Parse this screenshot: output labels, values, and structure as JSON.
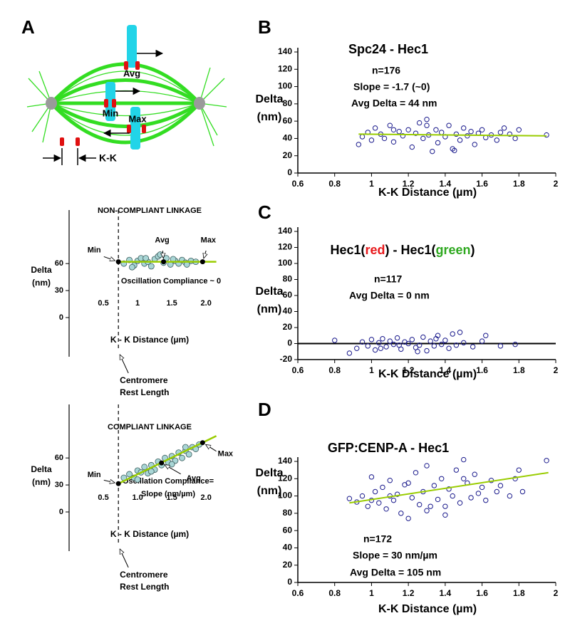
{
  "panel_labels": [
    "A",
    "B",
    "C",
    "D"
  ],
  "diagram": {
    "labels": [
      "Avg",
      "Min",
      "Max",
      "K-K"
    ]
  },
  "chart_data": [
    {
      "type": "scatter",
      "title": "NON-COMPLIANT LINKAGE",
      "xlabel": "K - K Distance (µm)",
      "ylabel": [
        "Delta",
        "(nm)"
      ],
      "xlim": [
        0,
        2.3
      ],
      "ylim": [
        0,
        110
      ],
      "xticks": [
        0.5,
        1,
        1.5,
        {
          "value": 2,
          "label": "2.0"
        }
      ],
      "yticks": [
        0,
        30,
        60
      ],
      "color": "#a9d6d6",
      "x": [
        0.8,
        0.88,
        0.95,
        1.0,
        1.05,
        1.1,
        1.15,
        1.2,
        1.25,
        1.3,
        1.38,
        1.42,
        1.48,
        1.55,
        1.6,
        1.65,
        1.7,
        1.78,
        1.85,
        0.92,
        1.12,
        1.33,
        1.52,
        1.72
      ],
      "y": [
        60,
        64,
        58,
        63,
        66,
        60,
        62,
        57,
        65,
        68,
        61,
        66,
        59,
        63,
        60,
        64,
        61,
        63,
        62,
        56,
        66,
        70,
        65,
        59
      ],
      "fit": {
        "x": [
          0.72,
          2.15
        ],
        "y": [
          62,
          62
        ],
        "color": "#99cc00"
      },
      "key_points": {
        "x": [
          0.72,
          1.38,
          1.95
        ],
        "y": [
          62,
          62,
          62
        ],
        "labels": [
          "Min",
          "Avg",
          "Max"
        ]
      },
      "rest_length": 0.72,
      "rest_label": [
        "Centromere",
        "Rest Length"
      ],
      "annotations": [
        "Oscillation Compliance ~ 0"
      ]
    },
    {
      "type": "scatter",
      "title": "COMPLIANT LINKAGE",
      "xlabel": "K - K Distance (µm)",
      "ylabel": [
        "Delta",
        "(nm)"
      ],
      "xlim": [
        0,
        2.3
      ],
      "ylim": [
        0,
        110
      ],
      "xticks": [
        0.5,
        {
          "value": 1,
          "label": "1.0"
        },
        1.5,
        {
          "value": 2,
          "label": "2.0"
        }
      ],
      "yticks": [
        0,
        30,
        60
      ],
      "color": "#a9d6d6",
      "x": [
        0.8,
        0.88,
        0.95,
        1.0,
        1.05,
        1.1,
        1.15,
        1.2,
        1.25,
        1.3,
        1.35,
        1.4,
        1.45,
        1.5,
        1.55,
        1.6,
        1.65,
        1.7,
        1.75,
        1.8,
        1.85,
        1.9,
        1.0,
        1.2,
        1.5,
        1.7
      ],
      "y": [
        38,
        42,
        38,
        46,
        44,
        50,
        43,
        52,
        47,
        56,
        52,
        60,
        55,
        62,
        57,
        66,
        60,
        68,
        64,
        72,
        70,
        75,
        36,
        45,
        53,
        72
      ],
      "fit": {
        "x": [
          0.72,
          2.15
        ],
        "y": [
          31.5,
          84.5
        ],
        "color": "#99cc00"
      },
      "key_points": {
        "x": [
          0.72,
          1.35,
          1.95
        ],
        "y": [
          31.5,
          54.5,
          77
        ],
        "labels": [
          "Min",
          "Avg",
          "Max"
        ]
      },
      "rest_length": 0.72,
      "rest_label": [
        "Centromere",
        "Rest Length"
      ],
      "annotations": [
        "Oscillation Compliance=",
        "Slope (nm/µm)"
      ]
    },
    {
      "type": "scatter",
      "title": "Spc24 - Hec1",
      "xlabel": "K-K Distance (µm)",
      "ylabel": [
        "Delta",
        "(nm)"
      ],
      "xlim": [
        0.6,
        2
      ],
      "ylim": [
        0,
        140
      ],
      "xticks": [
        0.6,
        0.8,
        1,
        1.2,
        1.4,
        1.6,
        1.8,
        2
      ],
      "yticks": [
        0,
        20,
        40,
        60,
        80,
        100,
        120,
        140
      ],
      "color": "#1a1a8c",
      "x": [
        0.93,
        0.95,
        0.98,
        1.0,
        1.02,
        1.05,
        1.07,
        1.1,
        1.12,
        1.15,
        1.17,
        1.2,
        1.22,
        1.24,
        1.26,
        1.28,
        1.3,
        1.31,
        1.33,
        1.35,
        1.36,
        1.38,
        1.4,
        1.42,
        1.44,
        1.46,
        1.48,
        1.5,
        1.52,
        1.54,
        1.56,
        1.58,
        1.6,
        1.62,
        1.65,
        1.68,
        1.7,
        1.72,
        1.75,
        1.78,
        1.8,
        1.95,
        1.12,
        1.3,
        1.45
      ],
      "y": [
        33,
        42,
        47,
        38,
        52,
        45,
        40,
        55,
        36,
        48,
        43,
        50,
        30,
        46,
        58,
        40,
        62,
        44,
        25,
        50,
        35,
        47,
        42,
        55,
        28,
        45,
        38,
        52,
        43,
        48,
        33,
        46,
        50,
        41,
        44,
        38,
        47,
        52,
        45,
        40,
        50,
        44,
        50,
        55,
        26
      ],
      "fit": {
        "x": [
          0.93,
          1.95
        ],
        "y": [
          45,
          43
        ],
        "color": "#99cc00"
      },
      "annotations": [
        "n=176",
        "Slope = -1.7 (~0)",
        "Avg Delta = 44 nm"
      ]
    },
    {
      "type": "scatter",
      "title_parts": [
        {
          "text": "Hec1(",
          "color": "#000000"
        },
        {
          "text": "red",
          "color": "#e8191c"
        },
        {
          "text": ") - Hec1(",
          "color": "#000000"
        },
        {
          "text": "green",
          "color": "#2ea81f"
        },
        {
          "text": ")",
          "color": "#000000"
        }
      ],
      "xlabel": "K-K Distance (µm)",
      "ylabel": [
        "Delta",
        "(nm)"
      ],
      "xlim": [
        0.6,
        2
      ],
      "ylim": [
        -20,
        140
      ],
      "xticks": [
        0.6,
        0.8,
        1,
        1.2,
        1.4,
        1.6,
        1.8,
        2
      ],
      "yticks": [
        -20,
        0,
        20,
        40,
        60,
        80,
        100,
        120,
        140
      ],
      "color": "#1a1a8c",
      "x": [
        0.8,
        0.88,
        0.92,
        0.95,
        0.98,
        1.0,
        1.02,
        1.04,
        1.06,
        1.08,
        1.1,
        1.12,
        1.14,
        1.16,
        1.18,
        1.2,
        1.22,
        1.24,
        1.26,
        1.28,
        1.3,
        1.32,
        1.34,
        1.36,
        1.38,
        1.4,
        1.42,
        1.44,
        1.46,
        1.48,
        1.5,
        1.55,
        1.6,
        1.62,
        1.7,
        1.78,
        1.05,
        1.25,
        1.35,
        1.15
      ],
      "y": [
        4,
        -12,
        -6,
        2,
        -3,
        5,
        -8,
        1,
        6,
        -4,
        3,
        -1,
        7,
        -7,
        2,
        0,
        5,
        -5,
        -2,
        8,
        -9,
        3,
        -3,
        10,
        -1,
        4,
        -6,
        12,
        -2,
        14,
        1,
        -4,
        3,
        10,
        -3,
        -1,
        -6,
        -10,
        6,
        -2
      ],
      "reference_line": 0,
      "annotations": [
        "n=117",
        "Avg Delta = 0 nm"
      ]
    },
    {
      "type": "scatter",
      "title": "GFP:CENP-A - Hec1",
      "xlabel": "K-K Distance (µm)",
      "ylabel": [
        "Delta",
        "(nm)"
      ],
      "xlim": [
        0.6,
        2
      ],
      "ylim": [
        0,
        140
      ],
      "xticks": [
        0.6,
        0.8,
        1,
        1.2,
        1.4,
        1.6,
        1.8,
        2
      ],
      "yticks": [
        0,
        20,
        40,
        60,
        80,
        100,
        120,
        140
      ],
      "color": "#1a1a8c",
      "x": [
        0.88,
        0.92,
        0.95,
        0.98,
        1.0,
        1.02,
        1.04,
        1.06,
        1.08,
        1.1,
        1.12,
        1.14,
        1.16,
        1.18,
        1.2,
        1.22,
        1.24,
        1.26,
        1.28,
        1.3,
        1.32,
        1.34,
        1.36,
        1.38,
        1.4,
        1.42,
        1.44,
        1.46,
        1.48,
        1.5,
        1.52,
        1.54,
        1.56,
        1.58,
        1.6,
        1.62,
        1.65,
        1.68,
        1.7,
        1.75,
        1.78,
        1.8,
        1.82,
        1.95,
        1.0,
        1.2,
        1.3,
        1.5,
        1.1,
        1.4
      ],
      "y": [
        97,
        93,
        100,
        88,
        122,
        105,
        92,
        110,
        85,
        118,
        95,
        102,
        80,
        113,
        74,
        98,
        127,
        90,
        105,
        135,
        88,
        112,
        96,
        120,
        78,
        108,
        100,
        130,
        92,
        142,
        115,
        98,
        125,
        103,
        110,
        95,
        118,
        105,
        112,
        100,
        120,
        130,
        105,
        141,
        95,
        115,
        83,
        120,
        100,
        88
      ],
      "fit": {
        "x": [
          0.88,
          1.96
        ],
        "y": [
          92,
          127
        ],
        "color": "#99cc00"
      },
      "annotations": [
        "n=172",
        "Slope = 30 nm/µm",
        "Avg Delta = 105 nm"
      ]
    }
  ]
}
